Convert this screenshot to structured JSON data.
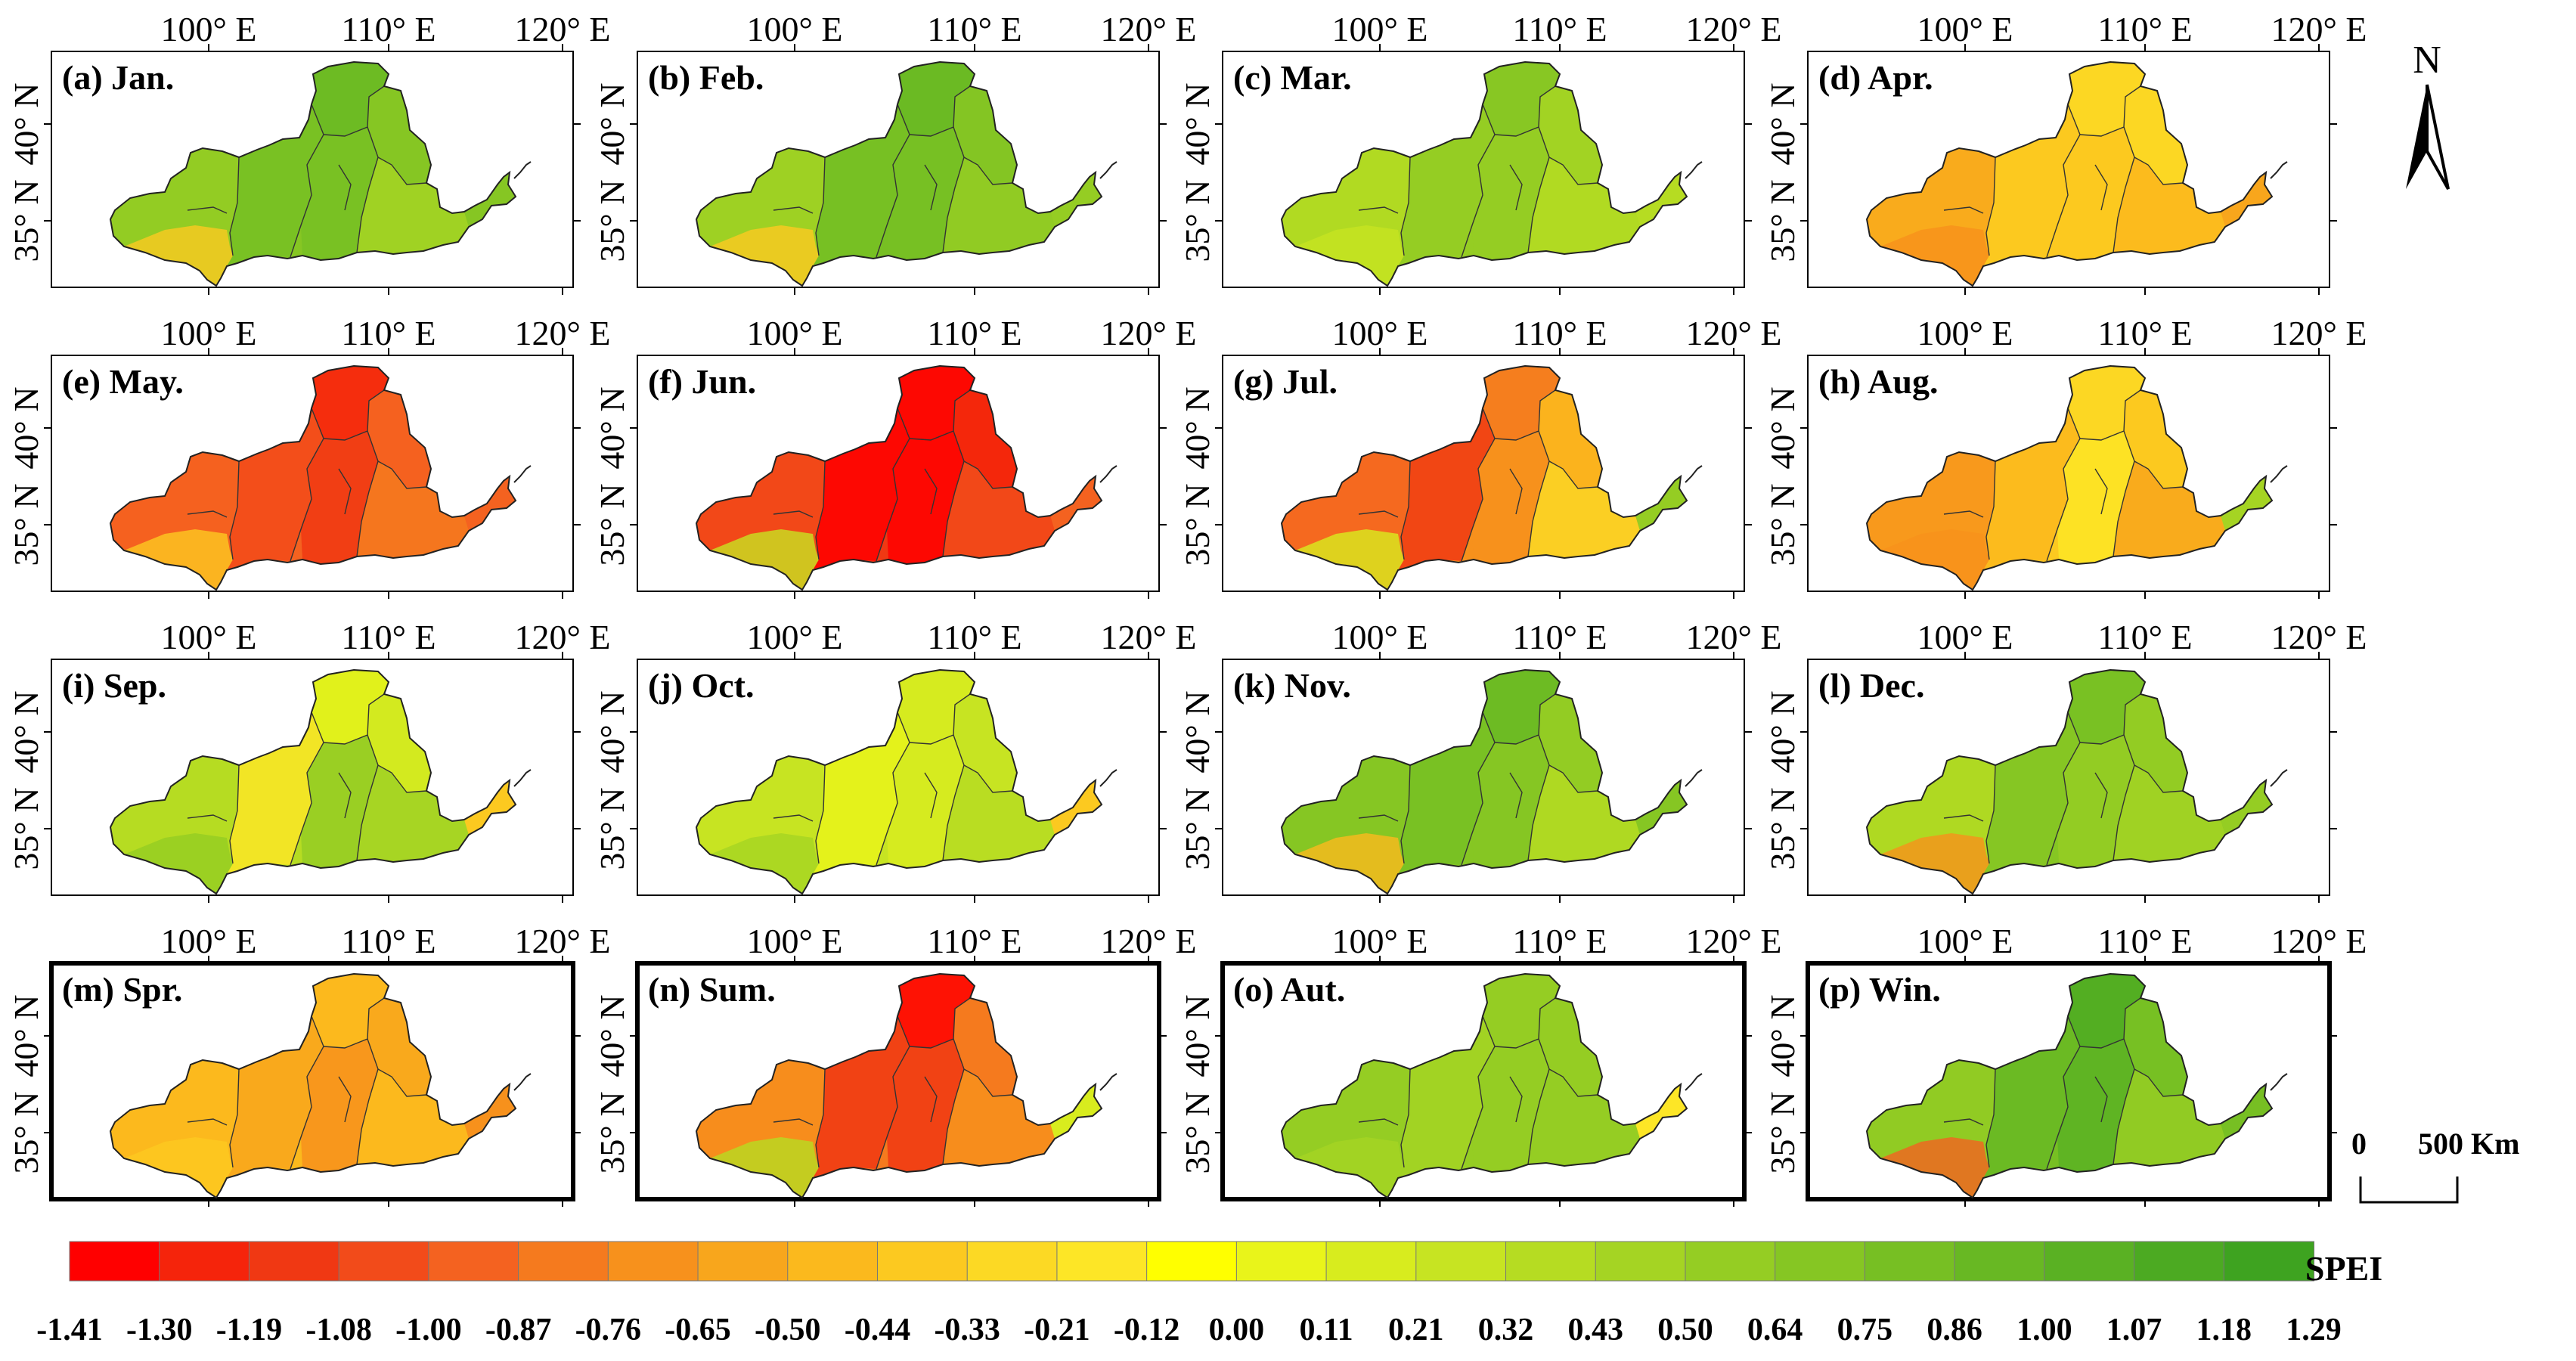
{
  "axes": {
    "lon_labels": [
      "100° E",
      "110° E",
      "120° E"
    ],
    "lat_labels": [
      "40° N",
      "35° N"
    ]
  },
  "panels": [
    {
      "label": "(a) Jan.",
      "highlight": false,
      "mean_spei": 0.75,
      "region_spei": [
        0.64,
        0.86,
        1.0,
        0.86,
        0.75,
        0.5,
        -0.33
      ],
      "east_spei": 0.75
    },
    {
      "label": "(b) Feb.",
      "highlight": false,
      "mean_spei": 0.8,
      "region_spei": [
        0.5,
        0.86,
        1.0,
        0.86,
        0.75,
        0.64,
        -0.33
      ],
      "east_spei": 0.64
    },
    {
      "label": "(c) Mar.",
      "highlight": false,
      "mean_spei": 0.55,
      "region_spei": [
        0.43,
        0.64,
        0.75,
        0.64,
        0.5,
        0.43,
        0.32
      ],
      "east_spei": 0.43
    },
    {
      "label": "(d) Apr.",
      "highlight": false,
      "mean_spei": -0.35,
      "region_spei": [
        -0.5,
        -0.33,
        -0.21,
        -0.33,
        -0.21,
        -0.44,
        -0.65
      ],
      "east_spei": -0.5
    },
    {
      "label": "(e) May.",
      "highlight": false,
      "mean_spei": -0.95,
      "region_spei": [
        -0.87,
        -1.0,
        -1.19,
        -1.08,
        -0.87,
        -0.76,
        -0.33
      ],
      "east_spei": -0.87
    },
    {
      "label": "(f) Jun.",
      "highlight": false,
      "mean_spei": -1.15,
      "region_spei": [
        -1.0,
        -1.3,
        -1.41,
        -1.3,
        -1.19,
        -1.0,
        0.32
      ],
      "east_spei": -0.87
    },
    {
      "label": "(g) Jul.",
      "highlight": false,
      "mean_spei": -0.7,
      "region_spei": [
        -0.87,
        -1.08,
        -0.76,
        -0.65,
        -0.44,
        -0.21,
        0.21
      ],
      "east_spei": 0.64
    },
    {
      "label": "(h) Aug.",
      "highlight": false,
      "mean_spei": -0.4,
      "region_spei": [
        -0.65,
        -0.44,
        -0.21,
        -0.12,
        -0.33,
        -0.5,
        -0.65
      ],
      "east_spei": 0.5
    },
    {
      "label": "(i) Sep.",
      "highlight": false,
      "mean_spei": 0.4,
      "region_spei": [
        0.43,
        -0.12,
        0.11,
        0.64,
        0.21,
        0.5,
        0.64
      ],
      "east_spei": -0.33
    },
    {
      "label": "(j) Oct.",
      "highlight": false,
      "mean_spei": 0.3,
      "region_spei": [
        0.32,
        0.11,
        0.21,
        0.21,
        0.32,
        0.43,
        0.5
      ],
      "east_spei": -0.33
    },
    {
      "label": "(k) Nov.",
      "highlight": false,
      "mean_spei": 0.7,
      "region_spei": [
        0.75,
        0.86,
        1.0,
        0.75,
        0.64,
        0.43,
        -0.44
      ],
      "east_spei": 0.75
    },
    {
      "label": "(l) Dec.",
      "highlight": false,
      "mean_spei": 0.65,
      "region_spei": [
        0.43,
        0.75,
        0.86,
        0.64,
        0.64,
        0.5,
        -0.65
      ],
      "east_spei": 0.64
    },
    {
      "label": "(m) Spr.",
      "highlight": true,
      "mean_spei": -0.45,
      "region_spei": [
        -0.44,
        -0.5,
        -0.44,
        -0.65,
        -0.5,
        -0.44,
        -0.33
      ],
      "east_spei": -0.65
    },
    {
      "label": "(n) Sum.",
      "highlight": true,
      "mean_spei": -0.85,
      "region_spei": [
        -0.65,
        -1.08,
        -1.3,
        -1.08,
        -0.76,
        -0.65,
        0.43
      ],
      "east_spei": 0.21
    },
    {
      "label": "(o) Aut.",
      "highlight": true,
      "mean_spei": 0.6,
      "region_spei": [
        0.64,
        0.5,
        0.64,
        0.64,
        0.64,
        0.64,
        0.5
      ],
      "east_spei": -0.12
    },
    {
      "label": "(p) Win.",
      "highlight": true,
      "mean_spei": 0.85,
      "region_spei": [
        0.64,
        1.0,
        1.18,
        1.07,
        0.86,
        0.64,
        -0.87
      ],
      "east_spei": 0.86
    }
  ],
  "north_arrow": {
    "label": "N"
  },
  "scale_bar": {
    "zero": "0",
    "distance": "500",
    "unit": "Km"
  },
  "legend": {
    "title": "SPEI",
    "tick_labels": [
      "-1.41",
      "-1.30",
      "-1.19",
      "-1.08",
      "-1.00",
      "-0.87",
      "-0.76",
      "-0.65",
      "-0.50",
      "-0.44",
      "-0.33",
      "-0.21",
      "-0.12",
      "0.00",
      "0.11",
      "0.21",
      "0.32",
      "0.43",
      "0.50",
      "0.64",
      "0.75",
      "0.86",
      "1.00",
      "1.07",
      "1.18",
      "1.29"
    ],
    "colors": [
      "#ff0000",
      "#f5240b",
      "#f03813",
      "#f24b1a",
      "#f46220",
      "#f57a1e",
      "#f7911c",
      "#f8a61c",
      "#fbb91d",
      "#fcc920",
      "#fcd924",
      "#fde626",
      "#ffff00",
      "#e9f41a",
      "#d8ec1e",
      "#c7e422",
      "#b6dc22",
      "#a5d423",
      "#95cd23",
      "#86c623",
      "#77bf23",
      "#68b823",
      "#5ab123",
      "#4caa22",
      "#3ea320"
    ]
  }
}
